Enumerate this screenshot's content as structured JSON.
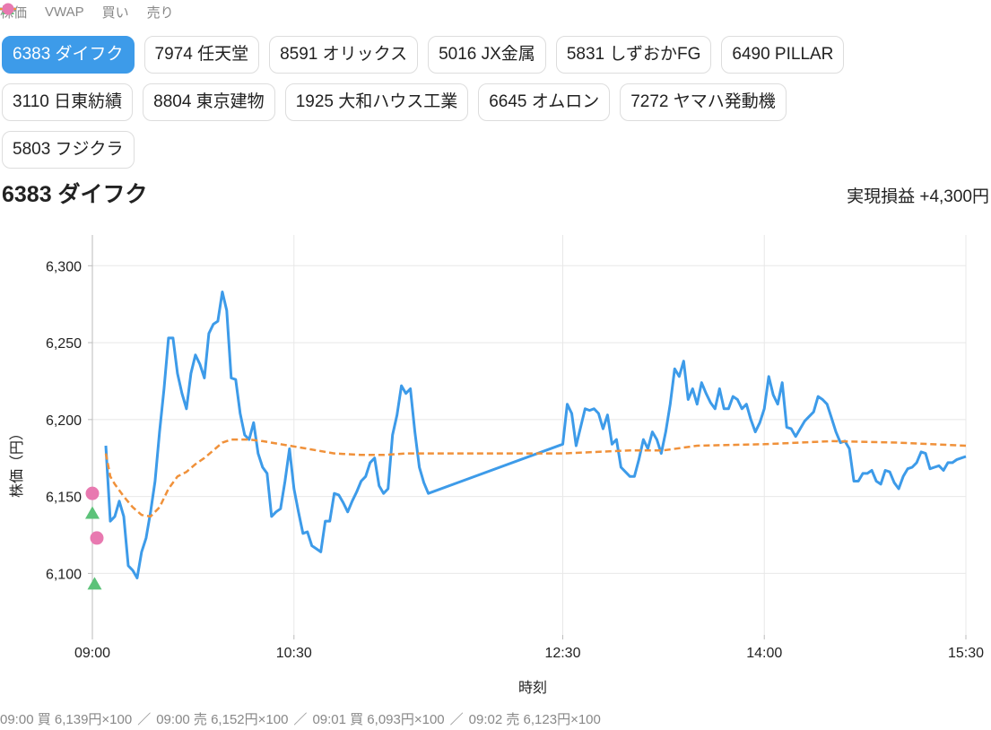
{
  "legend_note": null,
  "tabs": {
    "items": [
      "6383 ダイフク",
      "7974 任天堂",
      "8591 オリックス",
      "5016 JX金属",
      "5831 しずおかFG",
      "6490 PILLAR",
      "3110 日東紡績",
      "8804 東京建物",
      "1925 大和ハウス工業",
      "6645 オムロン",
      "7272 ヤマハ発動機",
      "5803 フジクラ"
    ],
    "active": 0
  },
  "header": {
    "pnl": "実現損益 +4,300円"
  },
  "chart_data": {
    "type": "line",
    "title": "6383 ダイフク",
    "x_label": "時刻",
    "y_label": "株価（円）",
    "xlim": [
      "09:00",
      "15:30"
    ],
    "xticks": [
      "09:00",
      "10:30",
      "12:30",
      "14:00",
      "15:30"
    ],
    "ylim": [
      6060,
      6320
    ],
    "yticks": [
      {
        "value": 6100,
        "label": "6,100"
      },
      {
        "value": 6150,
        "label": "6,150"
      },
      {
        "value": 6200,
        "label": "6,200"
      },
      {
        "value": 6250,
        "label": "6,250"
      },
      {
        "value": 6300,
        "label": "6,300"
      }
    ],
    "grid": true,
    "series": [
      {
        "name": "株価",
        "color": "#3d9be9",
        "style": "line",
        "x": [
          "09:06",
          "09:08",
          "09:10",
          "09:12",
          "09:14",
          "09:16",
          "09:18",
          "09:20",
          "09:22",
          "09:24",
          "09:26",
          "09:28",
          "09:30",
          "09:32",
          "09:34",
          "09:36",
          "09:38",
          "09:40",
          "09:42",
          "09:44",
          "09:46",
          "09:48",
          "09:50",
          "09:52",
          "09:54",
          "09:56",
          "09:58",
          "10:00",
          "10:02",
          "10:04",
          "10:06",
          "10:08",
          "10:10",
          "10:12",
          "10:14",
          "10:16",
          "10:18",
          "10:20",
          "10:22",
          "10:24",
          "10:26",
          "10:28",
          "10:30",
          "10:32",
          "10:34",
          "10:36",
          "10:38",
          "10:40",
          "10:42",
          "10:44",
          "10:46",
          "10:48",
          "10:50",
          "10:52",
          "10:54",
          "10:56",
          "10:58",
          "11:00",
          "11:02",
          "11:04",
          "11:06",
          "11:08",
          "11:10",
          "11:12",
          "11:14",
          "11:16",
          "11:18",
          "11:20",
          "11:22",
          "11:24",
          "11:26",
          "11:28",
          "11:30",
          "12:30",
          "12:32",
          "12:34",
          "12:36",
          "12:38",
          "12:40",
          "12:42",
          "12:44",
          "12:46",
          "12:48",
          "12:50",
          "12:52",
          "12:54",
          "12:56",
          "12:58",
          "13:00",
          "13:02",
          "13:04",
          "13:06",
          "13:08",
          "13:10",
          "13:12",
          "13:14",
          "13:16",
          "13:18",
          "13:20",
          "13:22",
          "13:24",
          "13:26",
          "13:28",
          "13:30",
          "13:32",
          "13:34",
          "13:36",
          "13:38",
          "13:40",
          "13:42",
          "13:44",
          "13:46",
          "13:48",
          "13:50",
          "13:52",
          "13:54",
          "13:56",
          "13:58",
          "14:00",
          "14:02",
          "14:04",
          "14:06",
          "14:08",
          "14:10",
          "14:12",
          "14:14",
          "14:16",
          "14:18",
          "14:20",
          "14:22",
          "14:24",
          "14:26",
          "14:28",
          "14:30",
          "14:32",
          "14:34",
          "14:36",
          "14:38",
          "14:40",
          "14:42",
          "14:44",
          "14:46",
          "14:48",
          "14:50",
          "14:52",
          "14:54",
          "14:56",
          "14:58",
          "15:00",
          "15:02",
          "15:04",
          "15:06",
          "15:08",
          "15:10",
          "15:12",
          "15:14",
          "15:16",
          "15:18",
          "15:20",
          "15:22",
          "15:24",
          "15:26",
          "15:28",
          "15:30"
        ],
        "values": [
          6183,
          6134,
          6137,
          6147,
          6137,
          6105,
          6102,
          6097,
          6114,
          6123,
          6140,
          6160,
          6192,
          6220,
          6253,
          6253,
          6230,
          6217,
          6207,
          6230,
          6242,
          6236,
          6227,
          6256,
          6262,
          6264,
          6283,
          6271,
          6227,
          6226,
          6204,
          6190,
          6187,
          6198,
          6178,
          6169,
          6165,
          6137,
          6140,
          6142,
          6160,
          6181,
          6155,
          6140,
          6126,
          6127,
          6118,
          6116,
          6114,
          6134,
          6134,
          6152,
          6151,
          6146,
          6140,
          6147,
          6153,
          6160,
          6163,
          6172,
          6175,
          6157,
          6152,
          6155,
          6190,
          6203,
          6222,
          6217,
          6220,
          6192,
          6169,
          6159,
          6152,
          6184,
          6210,
          6204,
          6183,
          6195,
          6207,
          6206,
          6207,
          6204,
          6194,
          6203,
          6184,
          6187,
          6169,
          6166,
          6163,
          6163,
          6174,
          6187,
          6181,
          6192,
          6187,
          6178,
          6192,
          6210,
          6233,
          6228,
          6238,
          6213,
          6220,
          6210,
          6224,
          6217,
          6211,
          6207,
          6220,
          6207,
          6207,
          6215,
          6213,
          6207,
          6210,
          6200,
          6192,
          6198,
          6207,
          6228,
          6216,
          6210,
          6224,
          6195,
          6194,
          6189,
          6194,
          6199,
          6202,
          6205,
          6215,
          6213,
          6210,
          6201,
          6192,
          6185,
          6186,
          6181,
          6160,
          6160,
          6165,
          6165,
          6167,
          6160,
          6158,
          6167,
          6166,
          6159,
          6155,
          6163,
          6168,
          6169,
          6172,
          6179,
          6178,
          6168,
          6169,
          6170,
          6167,
          6172,
          6172,
          6174,
          6175,
          6176
        ]
      },
      {
        "name": "VWAP",
        "color": "#f0913a",
        "style": "dash",
        "x": [
          "09:06",
          "09:08",
          "09:10",
          "09:14",
          "09:18",
          "09:22",
          "09:26",
          "09:30",
          "09:34",
          "09:38",
          "09:42",
          "09:46",
          "09:50",
          "09:54",
          "09:58",
          "10:02",
          "10:06",
          "10:10",
          "10:16",
          "10:24",
          "10:36",
          "10:48",
          "11:00",
          "11:10",
          "11:20",
          "11:30",
          "12:30",
          "13:00",
          "13:15",
          "13:30",
          "14:00",
          "14:30",
          "15:00",
          "15:30"
        ],
        "values": [
          6178,
          6163,
          6158,
          6150,
          6143,
          6138,
          6137,
          6143,
          6155,
          6163,
          6166,
          6171,
          6175,
          6180,
          6185,
          6187,
          6187,
          6187,
          6186,
          6184,
          6181,
          6178,
          6177,
          6177,
          6178,
          6178,
          6178,
          6180,
          6180,
          6183,
          6184,
          6186,
          6185,
          6183
        ]
      },
      {
        "name": "買い",
        "color": "#5cc279",
        "style": "triangle",
        "x": [
          "09:00",
          "09:01"
        ],
        "values": [
          6139,
          6093
        ]
      },
      {
        "name": "売り",
        "color": "#e879b0",
        "style": "circle",
        "x": [
          "09:00",
          "09:02"
        ],
        "values": [
          6152,
          6123
        ]
      }
    ]
  },
  "footer": {
    "trades": [
      "09:00 買 6,139円×100",
      "09:00 売 6,152円×100",
      "09:01 買 6,093円×100",
      "09:02 売 6,123円×100"
    ],
    "separator": "／"
  }
}
